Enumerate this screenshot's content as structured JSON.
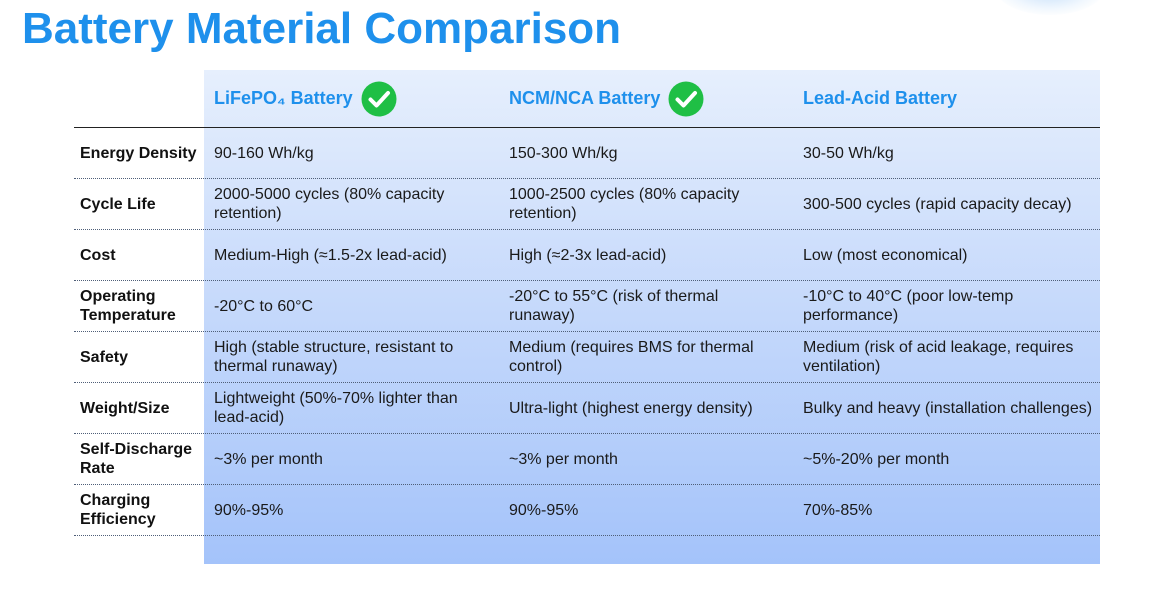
{
  "title": "Battery Material Comparison",
  "columns": [
    {
      "label": "LiFePO₄ Battery",
      "checked": true
    },
    {
      "label": "NCM/NCA Battery",
      "checked": true
    },
    {
      "label": "Lead-Acid Battery",
      "checked": false
    }
  ],
  "rows": [
    {
      "label": "Energy Density",
      "values": [
        "90-160 Wh/kg",
        "150-300 Wh/kg",
        "30-50 Wh/kg"
      ]
    },
    {
      "label": "Cycle Life",
      "values": [
        "2000-5000 cycles (80% capacity retention)",
        "1000-2500 cycles (80% capacity retention)",
        "300-500 cycles (rapid capacity decay)"
      ]
    },
    {
      "label": "Cost",
      "values": [
        "Medium-High (≈1.5-2x lead-acid)",
        "High (≈2-3x lead-acid)",
        "Low (most economical)"
      ]
    },
    {
      "label": "Operating Temperature",
      "values": [
        "-20°C to 60°C",
        "-20°C to 55°C (risk of thermal runaway)",
        "-10°C to 40°C (poor low-temp performance)"
      ]
    },
    {
      "label": "Safety",
      "values": [
        "High (stable structure, resistant to thermal runaway)",
        "Medium (requires BMS for thermal control)",
        "Medium (risk of acid leakage, requires ventilation)"
      ]
    },
    {
      "label": "Weight/Size",
      "values": [
        "Lightweight (50%-70% lighter than lead-acid)",
        "Ultra-light (highest energy density)",
        "Bulky and heavy (installation challenges)"
      ]
    },
    {
      "label": "Self-Discharge Rate",
      "values": [
        "~3% per month",
        "~3% per month",
        "~5%-20% per month"
      ]
    },
    {
      "label": "Charging Efficiency",
      "values": [
        "90%-95%",
        "90%-95%",
        "70%-85%"
      ]
    }
  ],
  "colors": {
    "title": "#1e90ec",
    "header_text": "#1e90ec",
    "check": "#1fbf45",
    "panel_top": "#e6effd",
    "panel_bottom": "#a4c3fa"
  }
}
